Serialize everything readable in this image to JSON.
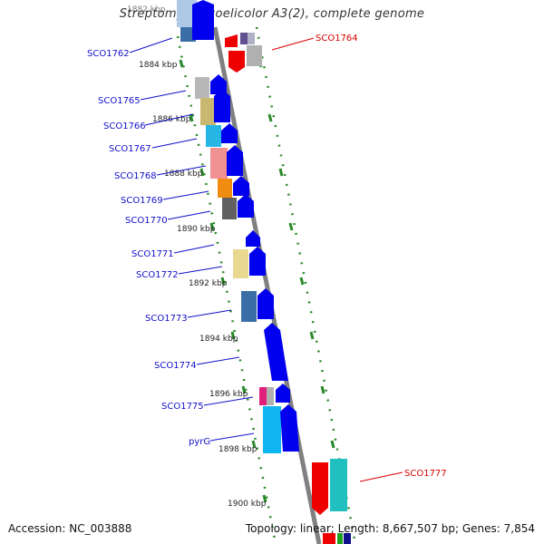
{
  "title": "Streptomyces coelicolor A3(2), complete genome",
  "accession_text": "Accession: NC_003888",
  "topology_text": "Topology: linear; Length: 8,667,507 bp; Genes: 7,854",
  "colors": {
    "axis": "#808080",
    "tick": "#2a8a2a",
    "label_blue": "#1010cc",
    "label_red": "#dd0000",
    "arrow_blue": "#0000ee",
    "arrow_red": "#ee0000",
    "scale_text": "#222222"
  },
  "scale_ticks": [
    "1882 kbp",
    "1884 kbp",
    "1886 kbp",
    "1888 kbp",
    "1890 kbp",
    "1892 kbp",
    "1894 kbp",
    "1896 kbp",
    "1898 kbp",
    "1900 kbp"
  ],
  "genes": [
    {
      "id": "SCO1762",
      "label": "SCO1762",
      "strand": "left"
    },
    {
      "id": "SCO1764",
      "label": "SCO1764",
      "strand": "right"
    },
    {
      "id": "SCO1765",
      "label": "SCO1765",
      "strand": "left"
    },
    {
      "id": "SCO1766",
      "label": "SCO1766",
      "strand": "left"
    },
    {
      "id": "SCO1767",
      "label": "SCO1767",
      "strand": "left"
    },
    {
      "id": "SCO1768",
      "label": "SCO1768",
      "strand": "left"
    },
    {
      "id": "SCO1769",
      "label": "SCO1769",
      "strand": "left"
    },
    {
      "id": "SCO1770",
      "label": "SCO1770",
      "strand": "left"
    },
    {
      "id": "SCO1771",
      "label": "SCO1771",
      "strand": "left"
    },
    {
      "id": "SCO1772",
      "label": "SCO1772",
      "strand": "left"
    },
    {
      "id": "SCO1773",
      "label": "SCO1773",
      "strand": "left"
    },
    {
      "id": "SCO1774",
      "label": "SCO1774",
      "strand": "left"
    },
    {
      "id": "SCO1775",
      "label": "SCO1775",
      "strand": "left"
    },
    {
      "id": "pyrG",
      "label": "pyrG",
      "strand": "left"
    },
    {
      "id": "SCO1777",
      "label": "SCO1777",
      "strand": "right"
    }
  ]
}
